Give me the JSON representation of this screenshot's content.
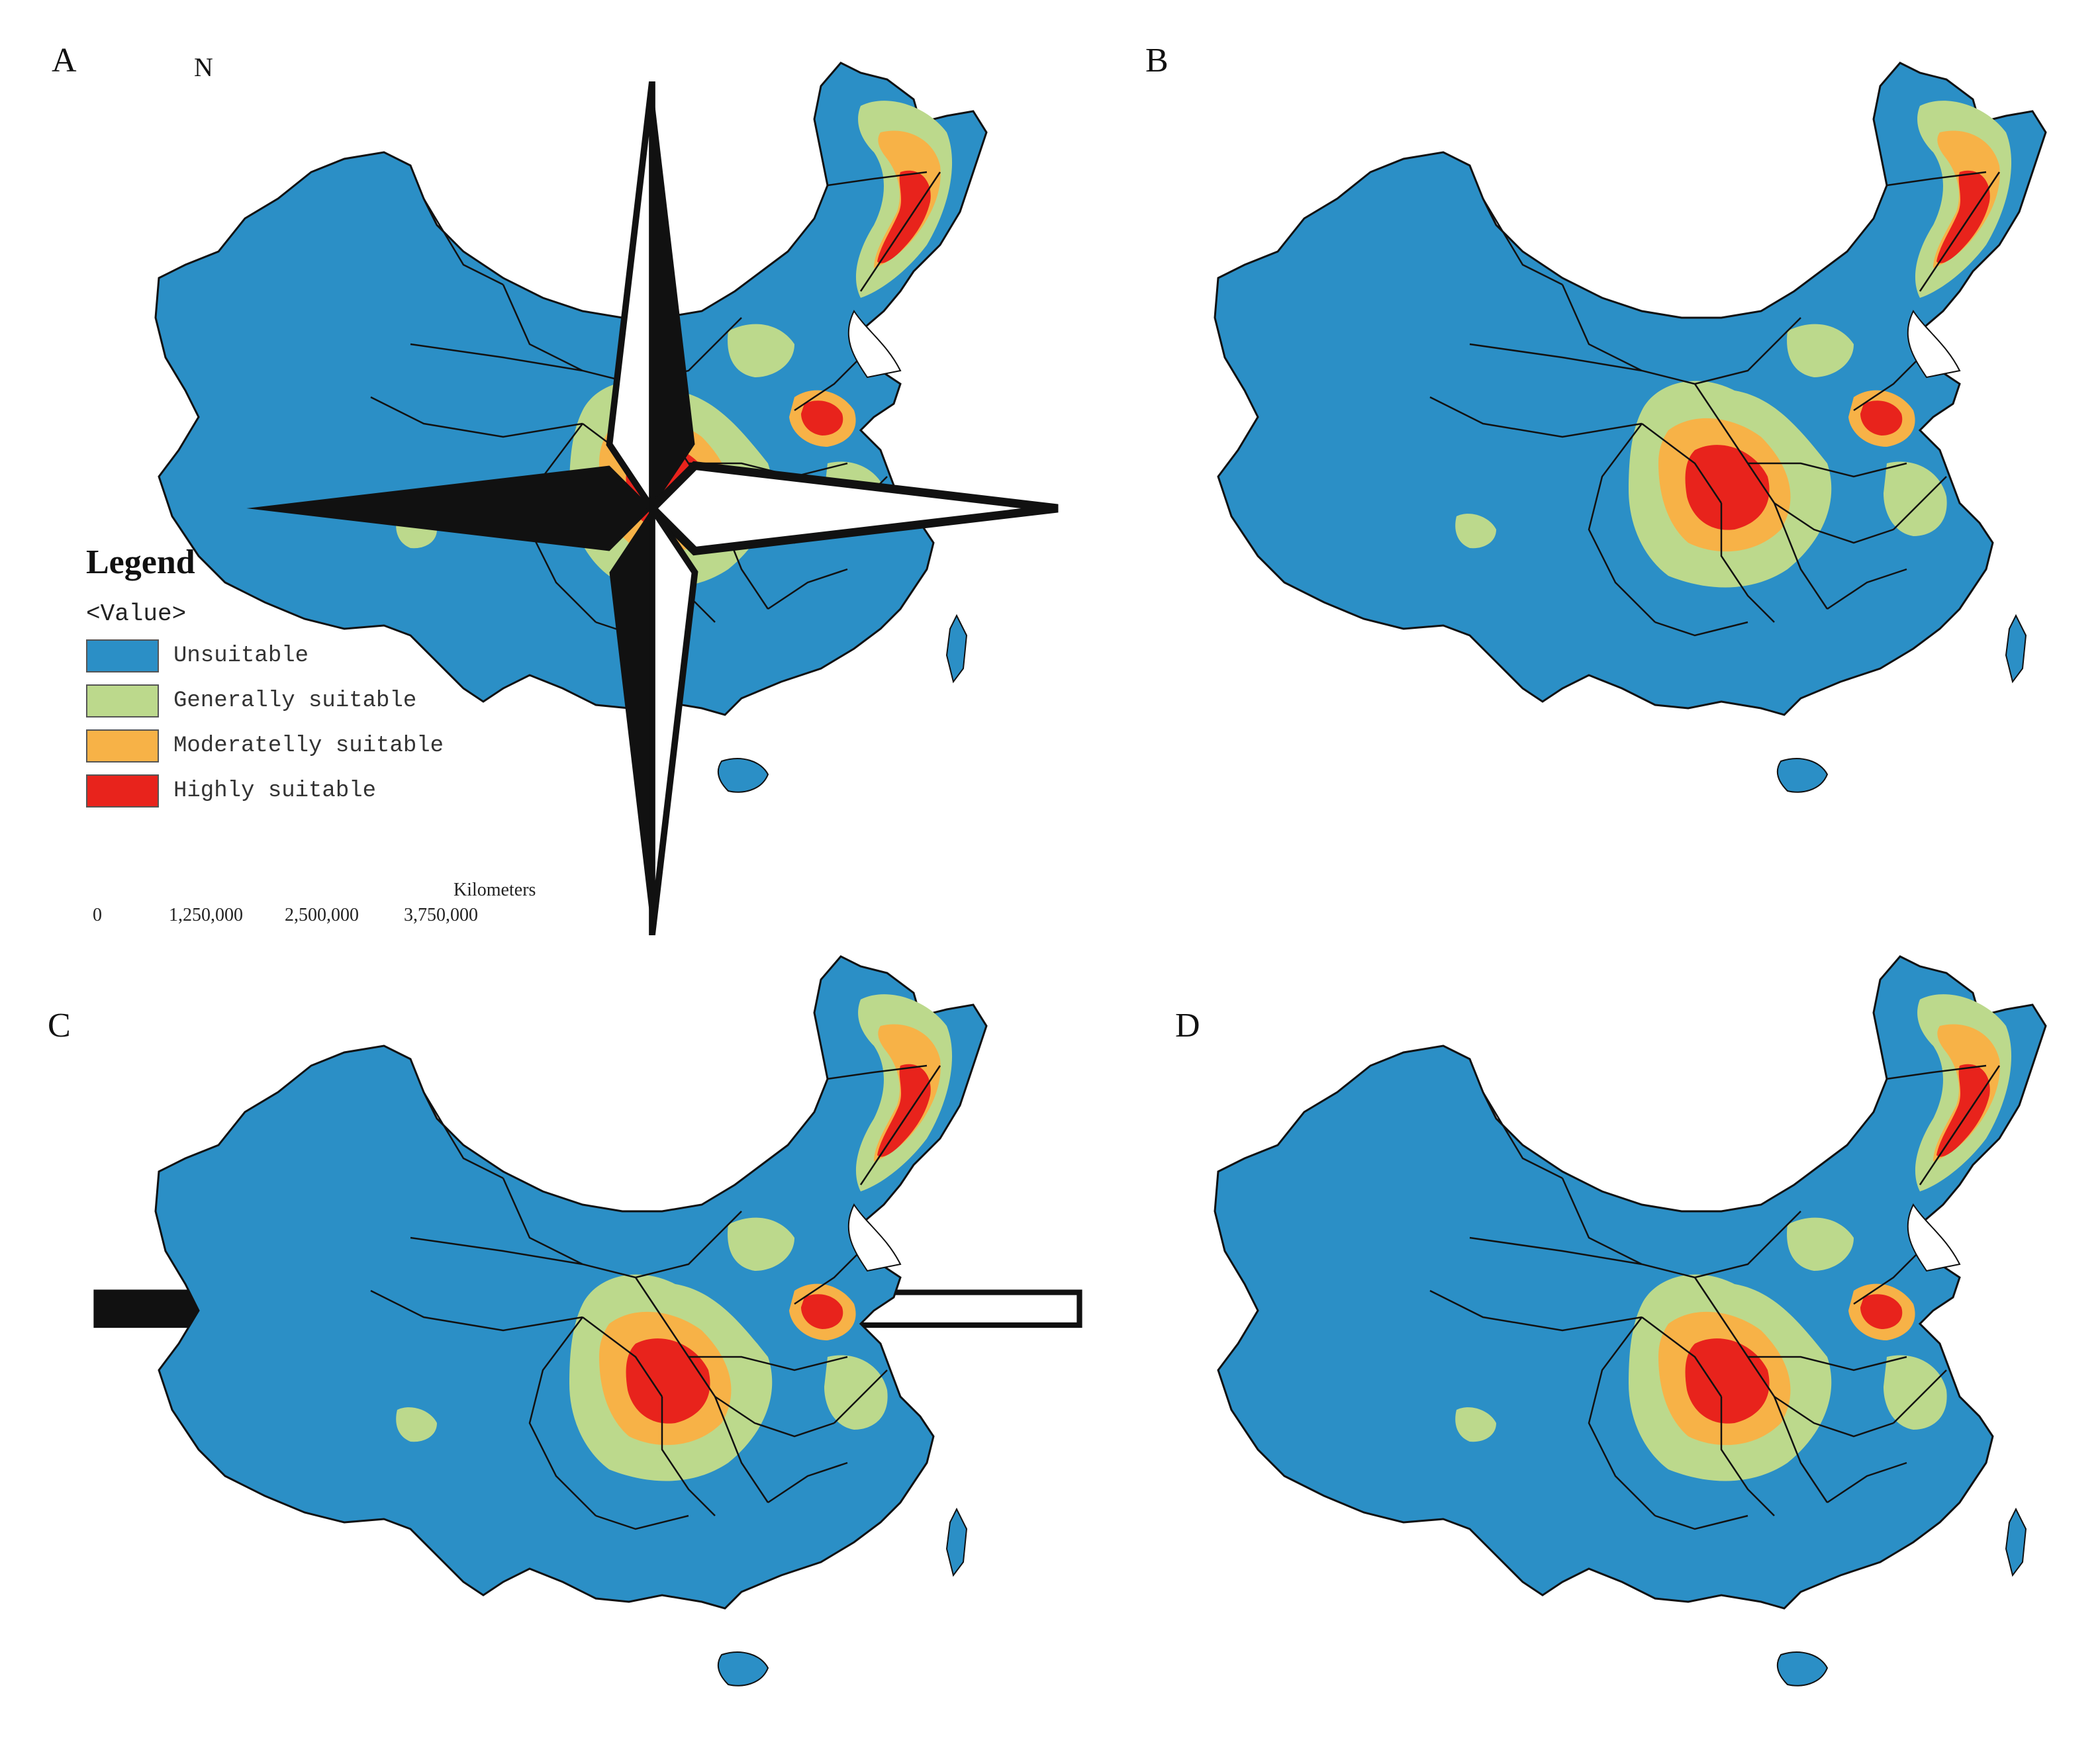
{
  "panels": [
    {
      "label": "A"
    },
    {
      "label": "B"
    },
    {
      "label": "C"
    },
    {
      "label": "D"
    }
  ],
  "north_arrow": {
    "letter": "N",
    "icon": "compass-rose-icon"
  },
  "legend": {
    "title": "Legend",
    "value_header": "<Value>",
    "classes": [
      {
        "label": "Unsuitable",
        "color": "#2b8fc6"
      },
      {
        "label": "Generally suitable",
        "color": "#bcd98c"
      },
      {
        "label": "Moderatelly suitable",
        "color": "#f7b247"
      },
      {
        "label": "Highly suitable",
        "color": "#e8231c"
      }
    ]
  },
  "scale_bar": {
    "unit": "Kilometers",
    "ticks": [
      "0",
      "1,250,000",
      "2,500,000",
      "3,750,000"
    ]
  }
}
